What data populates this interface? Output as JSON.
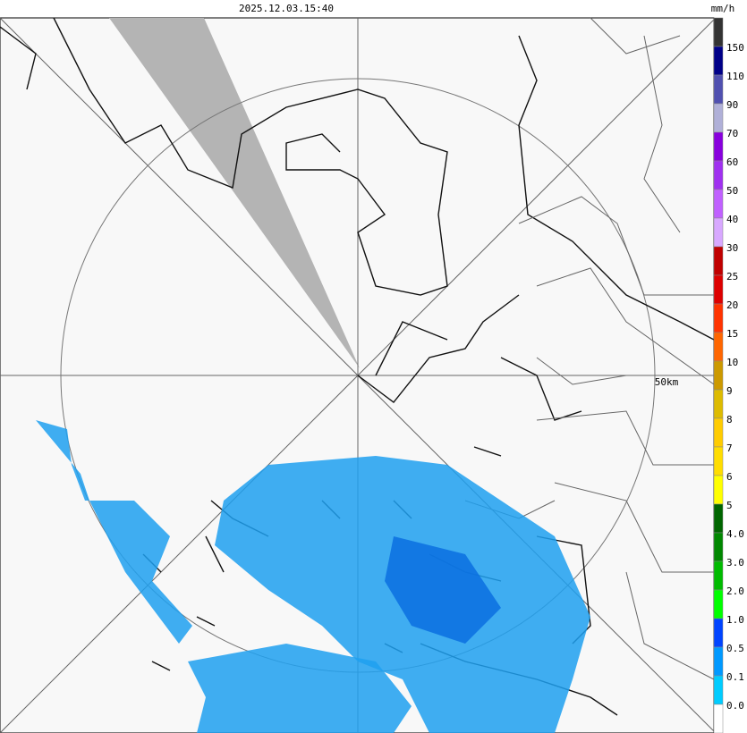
{
  "header": {
    "timestamp": "2025.12.03.15:40",
    "unit": "mm/h"
  },
  "map": {
    "range_label": "50km"
  },
  "legend": {
    "colors": [
      "#333333",
      "#000088",
      "#5050b0",
      "#b0b0d8",
      "#8800dd",
      "#a030f0",
      "#c060ff",
      "#d8a8ff",
      "#c00000",
      "#dd0000",
      "#ff3300",
      "#ff6600",
      "#cc9900",
      "#ddbb00",
      "#ffcc00",
      "#ffdd00",
      "#ffff00",
      "#006600",
      "#008800",
      "#00bb00",
      "#00ff00",
      "#0044ff",
      "#0099ff",
      "#00ccff",
      "#ffffff"
    ],
    "labels": [
      "150",
      "110",
      "90",
      "70",
      "60",
      "50",
      "40",
      "30",
      "25",
      "20",
      "15",
      "10",
      "9",
      "8",
      "7",
      "6",
      "5",
      "4.0",
      "3.0",
      "2.0",
      "1.0",
      "0.5",
      "0.1",
      "0.0"
    ]
  }
}
